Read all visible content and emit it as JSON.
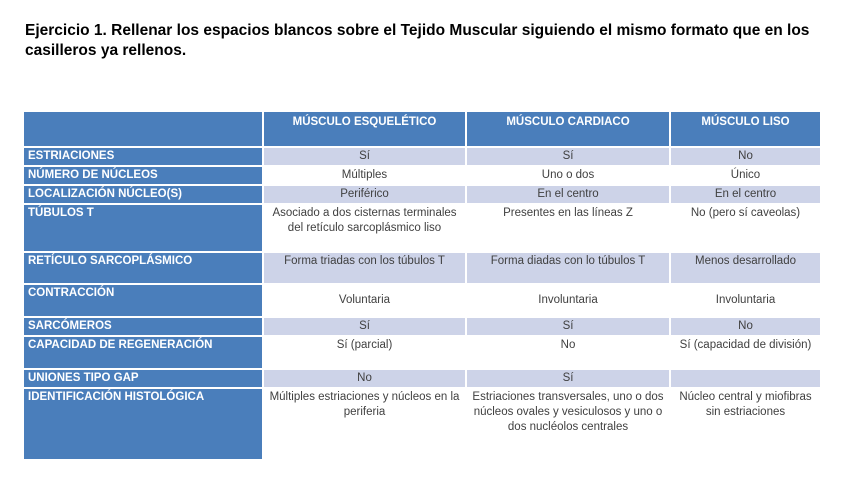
{
  "title": "Ejercicio 1. Rellenar los espacios blancos sobre el Tejido Muscular siguiendo el mismo formato que en los casilleros ya rellenos.",
  "table": {
    "columns": [
      "",
      "MÚSCULO ESQUELÉTICO",
      "MÚSCULO CARDIACO",
      "MÚSCULO LISO"
    ],
    "rows": [
      {
        "label": "ESTRIACIONES",
        "cells": [
          "Sí",
          "Sí",
          "No"
        ]
      },
      {
        "label": "NÚMERO DE NÚCLEOS",
        "cells": [
          "Múltiples",
          "Uno o dos",
          "Único"
        ]
      },
      {
        "label": "LOCALIZACIÓN NÚCLEO(S)",
        "cells": [
          "Periférico",
          "En el centro",
          "En el centro"
        ]
      },
      {
        "label": "TÚBULOS T",
        "cells": [
          "Asociado a dos cisternas terminales del retículo sarcoplásmico liso",
          "Presentes en las líneas Z",
          "No (pero sí caveolas)"
        ]
      },
      {
        "label": "RETÍCULO SARCOPLÁSMICO",
        "cells": [
          "Forma triadas con los túbulos T",
          "Forma diadas con lo túbulos T",
          "Menos desarrollado"
        ]
      },
      {
        "label": "CONTRACCIÓN",
        "cells": [
          "Voluntaria",
          "Involuntaria",
          "Involuntaria"
        ]
      },
      {
        "label": "SARCÓMEROS",
        "cells": [
          "Sí",
          "Sí",
          "No"
        ]
      },
      {
        "label": "CAPACIDAD DE REGENERACIÓN",
        "cells": [
          "Sí (parcial)",
          "No",
          "Sí (capacidad de división)"
        ]
      },
      {
        "label": "UNIONES TIPO GAP",
        "cells": [
          "No",
          "Sí",
          ""
        ]
      },
      {
        "label": "IDENTIFICACIÓN HISTOLÓGICA",
        "cells": [
          "Múltiples estriaciones y núcleos en la periferia",
          "Estriaciones transversales, uno o dos núcleos ovales y vesiculosos y uno o dos nucléolos centrales",
          "Núcleo central y miofibras sin estriaciones"
        ]
      }
    ]
  },
  "colors": {
    "header_blue": "#4A7EBB",
    "band_light": "#CDD3E8",
    "body_text": "#404040",
    "header_text": "#FFFFFF"
  }
}
